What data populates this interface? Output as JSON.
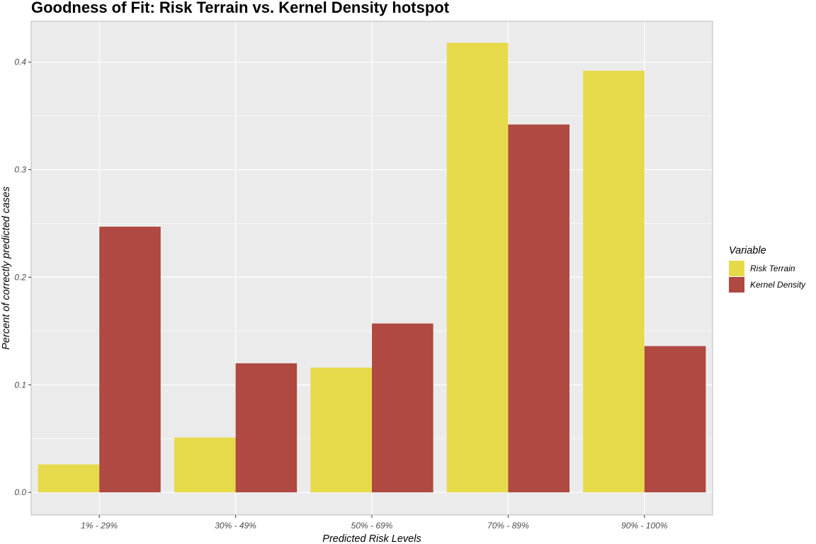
{
  "chart_data": {
    "type": "bar",
    "title": "Goodness of Fit: Risk Terrain vs. Kernel Density hotspot",
    "xlabel": "Predicted Risk Levels",
    "ylabel": "Percent of correctly predicted cases",
    "categories": [
      "1% - 29%",
      "30% - 49%",
      "50% - 69%",
      "70% - 89%",
      "90% - 100%"
    ],
    "series": [
      {
        "name": "Risk Terrain",
        "color": "#E6DA4B",
        "values": [
          0.026,
          0.051,
          0.116,
          0.418,
          0.392
        ]
      },
      {
        "name": "Kernel Density",
        "color": "#AF4941",
        "values": [
          0.247,
          0.12,
          0.157,
          0.342,
          0.136
        ]
      }
    ],
    "yticks": [
      0.0,
      0.1,
      0.2,
      0.3,
      0.4
    ],
    "ytick_labels": [
      "0.0",
      "0.1",
      "0.2",
      "0.3",
      "0.4"
    ],
    "ylim": [
      -0.021,
      0.438
    ],
    "legend": {
      "title": "Variable",
      "position": "right"
    },
    "grid": true,
    "panel_background": "#EBEBEB"
  }
}
